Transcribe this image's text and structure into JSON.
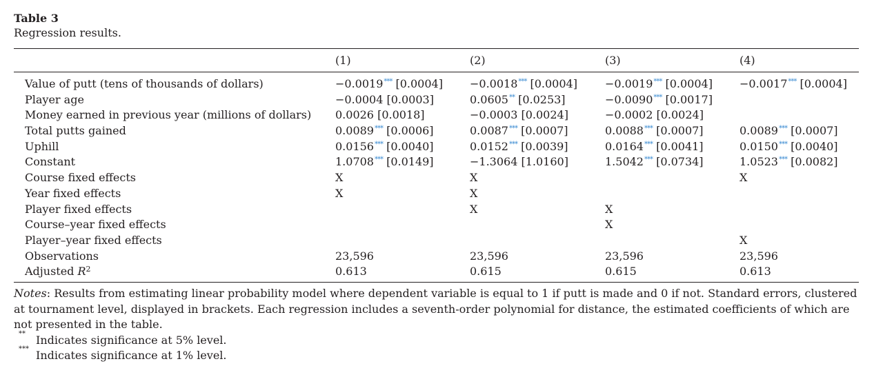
{
  "table": {
    "label": "Table 3",
    "caption": "Regression results.",
    "columns": [
      "(1)",
      "(2)",
      "(3)",
      "(4)"
    ],
    "rows": [
      {
        "label": "Value of putt (tens of thousands of dollars)",
        "cells": [
          {
            "coef": "−0.0019",
            "stars": "***",
            "se": "[0.0004]"
          },
          {
            "coef": "−0.0018",
            "stars": "***",
            "se": "[0.0004]"
          },
          {
            "coef": "−0.0019",
            "stars": "***",
            "se": "[0.0004]"
          },
          {
            "coef": "−0.0017",
            "stars": "***",
            "se": "[0.0004]"
          }
        ]
      },
      {
        "label": "Player age",
        "cells": [
          {
            "coef": "−0.0004",
            "stars": "",
            "se": "[0.0003]"
          },
          {
            "coef": "0.0605",
            "stars": "**",
            "se": "[0.0253]"
          },
          {
            "coef": "−0.0090",
            "stars": "***",
            "se": "[0.0017]"
          },
          {
            "coef": "",
            "stars": "",
            "se": ""
          }
        ]
      },
      {
        "label": "Money earned in previous year (millions of dollars)",
        "cells": [
          {
            "coef": "0.0026",
            "stars": "",
            "se": "[0.0018]"
          },
          {
            "coef": "−0.0003",
            "stars": "",
            "se": "[0.0024]"
          },
          {
            "coef": "−0.0002",
            "stars": "",
            "se": "[0.0024]"
          },
          {
            "coef": "",
            "stars": "",
            "se": ""
          }
        ]
      },
      {
        "label": "Total putts gained",
        "cells": [
          {
            "coef": "0.0089",
            "stars": "***",
            "se": "[0.0006]"
          },
          {
            "coef": "0.0087",
            "stars": "***",
            "se": "[0.0007]"
          },
          {
            "coef": "0.0088",
            "stars": "***",
            "se": "[0.0007]"
          },
          {
            "coef": "0.0089",
            "stars": "***",
            "se": "[0.0007]"
          }
        ]
      },
      {
        "label": "Uphill",
        "cells": [
          {
            "coef": "0.0156",
            "stars": "***",
            "se": "[0.0040]"
          },
          {
            "coef": "0.0152",
            "stars": "***",
            "se": "[0.0039]"
          },
          {
            "coef": "0.0164",
            "stars": "***",
            "se": "[0.0041]"
          },
          {
            "coef": "0.0150",
            "stars": "***",
            "se": "[0.0040]"
          }
        ]
      },
      {
        "label": "Constant",
        "cells": [
          {
            "coef": "1.0708",
            "stars": "***",
            "se": "[0.0149]"
          },
          {
            "coef": "−1.3064",
            "stars": "",
            "se": "[1.0160]"
          },
          {
            "coef": "1.5042",
            "stars": "***",
            "se": "[0.0734]"
          },
          {
            "coef": "1.0523",
            "stars": "***",
            "se": "[0.0082]"
          }
        ]
      },
      {
        "label": "Course fixed effects",
        "cells": [
          {
            "coef": "X",
            "stars": "",
            "se": ""
          },
          {
            "coef": "X",
            "stars": "",
            "se": ""
          },
          {
            "coef": "",
            "stars": "",
            "se": ""
          },
          {
            "coef": "X",
            "stars": "",
            "se": ""
          }
        ]
      },
      {
        "label": "Year fixed effects",
        "cells": [
          {
            "coef": "X",
            "stars": "",
            "se": ""
          },
          {
            "coef": "X",
            "stars": "",
            "se": ""
          },
          {
            "coef": "",
            "stars": "",
            "se": ""
          },
          {
            "coef": "",
            "stars": "",
            "se": ""
          }
        ]
      },
      {
        "label": "Player fixed effects",
        "cells": [
          {
            "coef": "",
            "stars": "",
            "se": ""
          },
          {
            "coef": "X",
            "stars": "",
            "se": ""
          },
          {
            "coef": "X",
            "stars": "",
            "se": ""
          },
          {
            "coef": "",
            "stars": "",
            "se": ""
          }
        ]
      },
      {
        "label": "Course–year fixed effects",
        "cells": [
          {
            "coef": "",
            "stars": "",
            "se": ""
          },
          {
            "coef": "",
            "stars": "",
            "se": ""
          },
          {
            "coef": "X",
            "stars": "",
            "se": ""
          },
          {
            "coef": "",
            "stars": "",
            "se": ""
          }
        ]
      },
      {
        "label": "Player–year fixed effects",
        "cells": [
          {
            "coef": "",
            "stars": "",
            "se": ""
          },
          {
            "coef": "",
            "stars": "",
            "se": ""
          },
          {
            "coef": "",
            "stars": "",
            "se": ""
          },
          {
            "coef": "X",
            "stars": "",
            "se": ""
          }
        ]
      },
      {
        "label": "Observations",
        "cells": [
          {
            "coef": "23,596",
            "stars": "",
            "se": ""
          },
          {
            "coef": "23,596",
            "stars": "",
            "se": ""
          },
          {
            "coef": "23,596",
            "stars": "",
            "se": ""
          },
          {
            "coef": "23,596",
            "stars": "",
            "se": ""
          }
        ]
      }
    ],
    "adjusted_r2": {
      "label_prefix": "Adjusted ",
      "label_var": "R",
      "label_sup": "2",
      "cells": [
        "0.613",
        "0.615",
        "0.615",
        "0.613"
      ]
    }
  },
  "notes": {
    "prefix": "Notes",
    "text": ": Results from estimating linear probability model where dependent variable is equal to 1 if putt is made and 0 if not. Standard errors, clustered at tournament level, displayed in brackets. Each regression includes a seventh-order polynomial for distance, the estimated coefficients of which are not presented in the table.",
    "footnotes": [
      {
        "marker": "**",
        "text": "Indicates significance at 5% level."
      },
      {
        "marker": "***",
        "text": "Indicates significance at 1% level."
      }
    ]
  },
  "colors": {
    "text": "#231f20",
    "star": "#3b8bd1"
  }
}
